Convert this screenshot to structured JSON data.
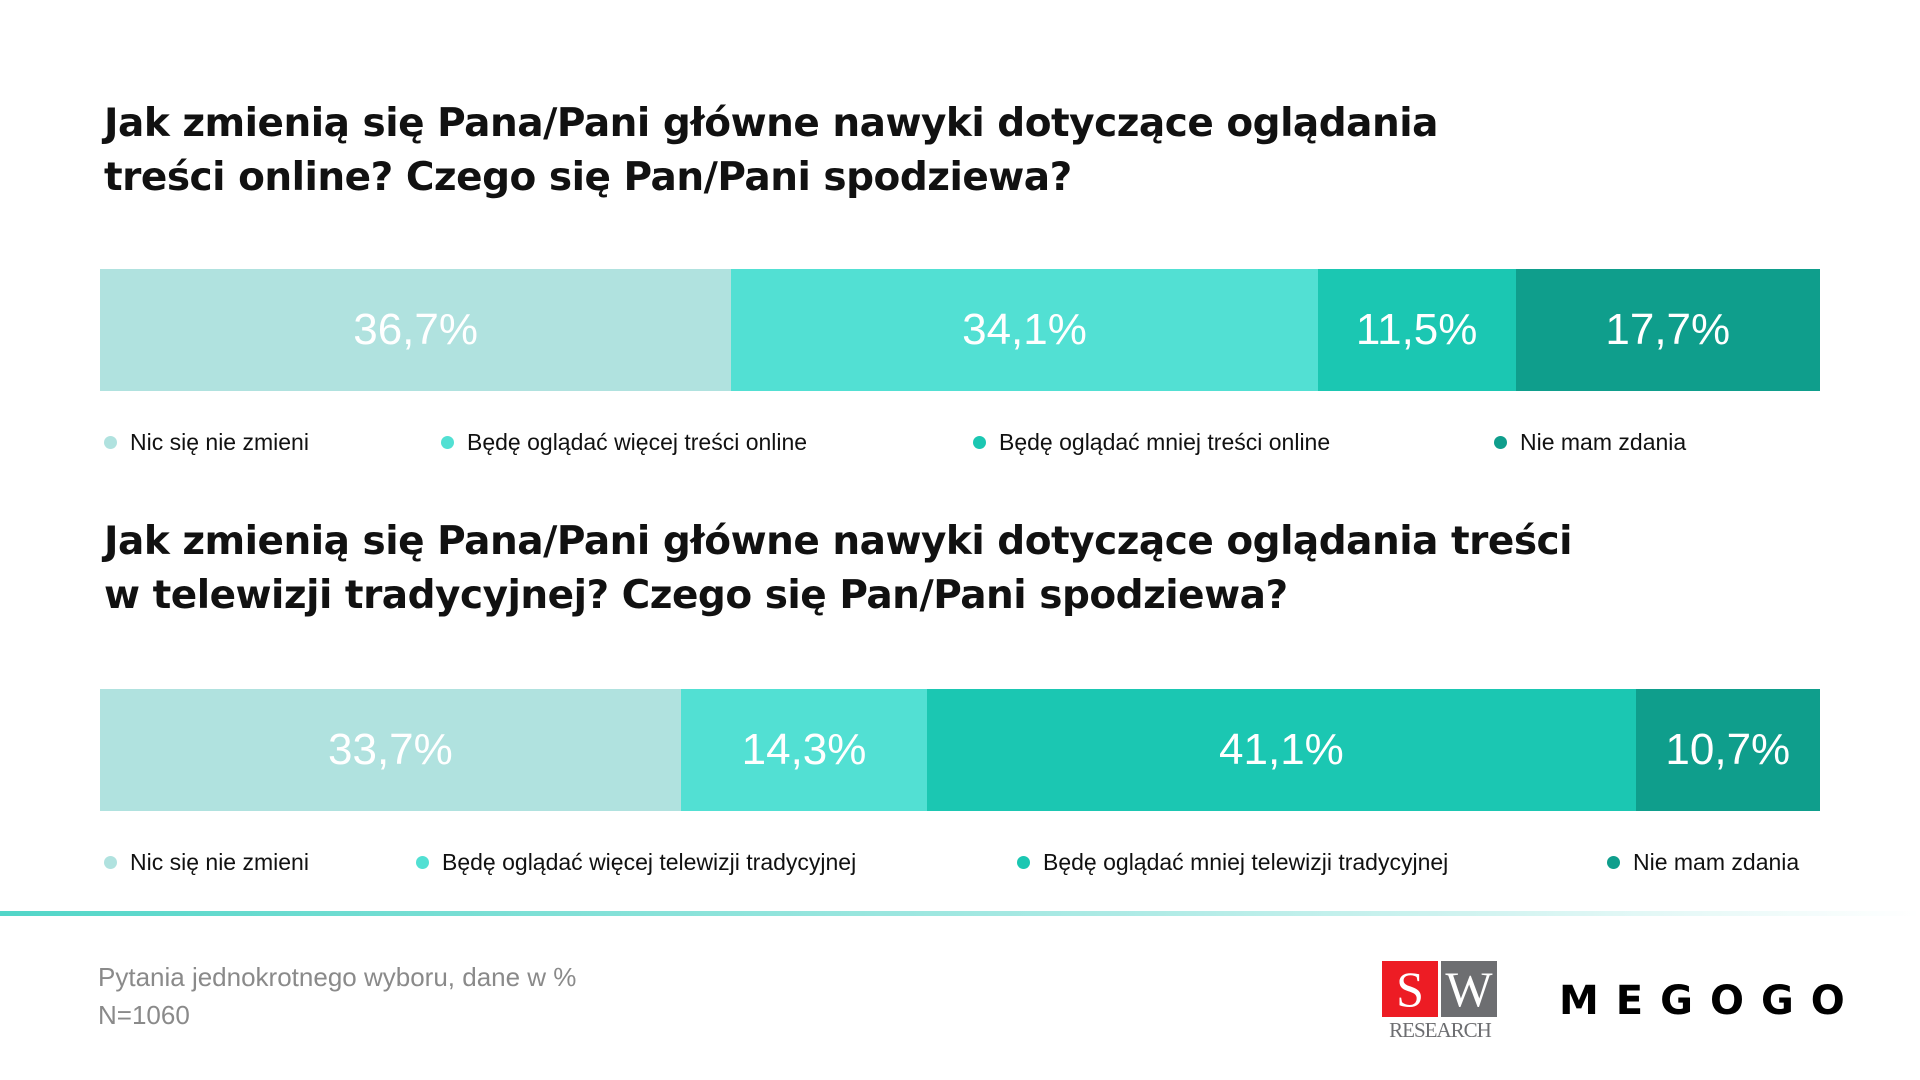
{
  "chart_data": [
    {
      "type": "bar",
      "stacked": true,
      "orientation": "horizontal",
      "title": "Jak zmienią się Pana/Pani główne nawyki dotyczące oglądania treści online? Czego się Pan/Pani spodziewa?",
      "title_lines": [
        "Jak zmienią się Pana/Pani główne nawyki dotyczące oglądania",
        "treści online? Czego się Pan/Pani spodziewa?"
      ],
      "series": [
        {
          "name": "Nic się nie zmieni",
          "value": 36.7,
          "label": "36,7%",
          "color": "#b0e2df"
        },
        {
          "name": "Będę oglądać więcej treści online",
          "value": 34.1,
          "label": "34,1%",
          "color": "#52e0d3"
        },
        {
          "name": "Będę oglądać mniej treści online",
          "value": 11.5,
          "label": "11,5%",
          "color": "#1bc7b2"
        },
        {
          "name": "Nie mam zdania",
          "value": 17.7,
          "label": "17,7%",
          "color": "#0f9e8c"
        }
      ],
      "legend": "bottom"
    },
    {
      "type": "bar",
      "stacked": true,
      "orientation": "horizontal",
      "title": "Jak zmienią się Pana/Pani główne nawyki dotyczące oglądania treści w telewizji tradycyjnej? Czego się Pan/Pani spodziewa?",
      "title_lines": [
        "Jak zmienią się Pana/Pani główne nawyki dotyczące oglądania treści",
        "w telewizji tradycyjnej? Czego się Pan/Pani spodziewa?"
      ],
      "series": [
        {
          "name": "Nic się nie zmieni",
          "value": 33.7,
          "label": "33,7%",
          "color": "#b0e2df"
        },
        {
          "name": "Będę oglądać więcej telewizji tradycyjnej",
          "value": 14.3,
          "label": "14,3%",
          "color": "#52e0d3"
        },
        {
          "name": "Będę oglądać mniej telewizji tradycyjnej",
          "value": 41.1,
          "label": "41,1%",
          "color": "#1bc7b2"
        },
        {
          "name": "Nie mam zdania",
          "value": 10.7,
          "label": "10,7%",
          "color": "#0f9e8c"
        }
      ],
      "legend": "bottom"
    }
  ],
  "footer": {
    "note": "Pytania jednokrotnego wyboru, dane w %",
    "sample": "N=1060"
  },
  "logos": {
    "sw_s": "S",
    "sw_w": "W",
    "sw_research": "RESEARCH",
    "megogo": "MEGOGO"
  }
}
